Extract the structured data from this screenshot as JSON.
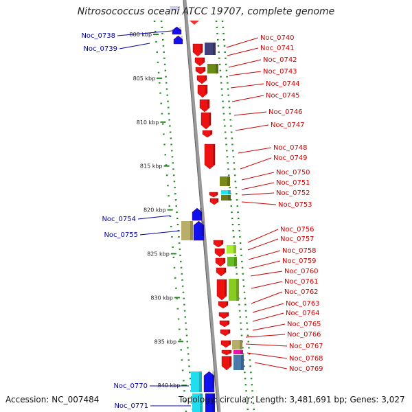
{
  "title": "Nitrosococcus oceani ATCC 19707, complete genome",
  "accession": "Accession: NC_007484",
  "stats": "Topology: circular; Length: 3,481,691 bp; Genes: 3,027",
  "ruler_labels": [
    {
      "kbp": 800,
      "text": "800 kbp"
    },
    {
      "kbp": 805,
      "text": "805 kbp"
    },
    {
      "kbp": 810,
      "text": "810 kbp"
    },
    {
      "kbp": 815,
      "text": "815 kbp"
    },
    {
      "kbp": 820,
      "text": "820 kbp"
    },
    {
      "kbp": 825,
      "text": "825 kbp"
    },
    {
      "kbp": 830,
      "text": "830 kbp"
    },
    {
      "kbp": 835,
      "text": "835 kbp"
    },
    {
      "kbp": 840,
      "text": "840 kbp"
    }
  ],
  "genes_left": [
    "Noc_0738",
    "Noc_0739",
    "Noc_0754",
    "Noc_0755",
    "Noc_0770",
    "Noc_0771"
  ],
  "genes_right": [
    "Noc_0740",
    "Noc_0741",
    "Noc_0742",
    "Noc_0743",
    "Noc_0744",
    "Noc_0745",
    "Noc_0746",
    "Noc_0747",
    "Noc_0748",
    "Noc_0749",
    "Noc_0750",
    "Noc_0751",
    "Noc_0752",
    "Noc_0753",
    "Noc_0756",
    "Noc_0757",
    "Noc_0758",
    "Noc_0759",
    "Noc_0760",
    "Noc_0761",
    "Noc_0762",
    "Noc_0763",
    "Noc_0764",
    "Noc_0765",
    "Noc_0766",
    "Noc_0767",
    "Noc_0768",
    "Noc_0769"
  ],
  "colors": {
    "forward_gene": "#ee1111",
    "reverse_gene": "#1111ee",
    "right_label": "#cc0000",
    "left_label": "#0000aa",
    "backbone": "#999999",
    "dots": "#228822"
  }
}
